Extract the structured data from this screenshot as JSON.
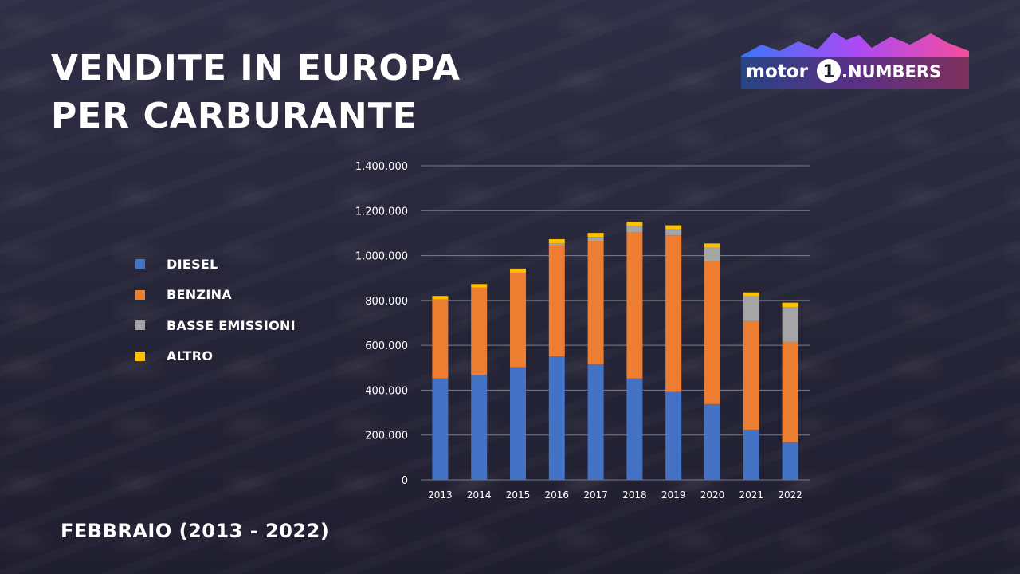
{
  "title_lines": [
    "VENDITE IN EUROPA",
    "PER CARBURANTE"
  ],
  "subtitle": "FEBBRAIO (2013 - 2022)",
  "logo": {
    "text_left": "motor",
    "text_number": "1",
    "text_right": ".NUMBERS",
    "colors": [
      "#3a7bff",
      "#b04cff",
      "#ff4fa0"
    ]
  },
  "colors": {
    "diesel": "#4472c4",
    "benzina": "#ed7d31",
    "basse_emissioni": "#a5a5a5",
    "altro": "#ffc000",
    "grid": "#8c8c9c",
    "text": "#ffffff"
  },
  "chart_data": {
    "type": "bar",
    "stacked": true,
    "categories": [
      "2013",
      "2014",
      "2015",
      "2016",
      "2017",
      "2018",
      "2019",
      "2020",
      "2021",
      "2022"
    ],
    "series": [
      {
        "name": "DIESEL",
        "color": "#4472c4",
        "values": [
          452000,
          468000,
          502000,
          550000,
          516000,
          452000,
          392000,
          338000,
          224000,
          168000
        ]
      },
      {
        "name": "BENZINA",
        "color": "#ed7d31",
        "values": [
          353000,
          390000,
          422000,
          495000,
          550000,
          653000,
          698000,
          636000,
          484000,
          447000
        ]
      },
      {
        "name": "BASSE EMISSIONI",
        "color": "#a5a5a5",
        "values": [
          0,
          0,
          0,
          10000,
          17000,
          27000,
          27000,
          62000,
          110000,
          155000
        ]
      },
      {
        "name": "ALTRO",
        "color": "#ffc000",
        "values": [
          15000,
          15000,
          18000,
          18000,
          18000,
          18000,
          18000,
          18000,
          18000,
          20000
        ]
      }
    ],
    "yticks": [
      "0",
      "200.000",
      "400.000",
      "600.000",
      "800.000",
      "1.000.000",
      "1.200.000",
      "1.400.000"
    ],
    "ytick_values": [
      0,
      200000,
      400000,
      600000,
      800000,
      1000000,
      1200000,
      1400000
    ],
    "ylim": [
      0,
      1400000
    ],
    "legend_position": "left",
    "grid": true
  }
}
